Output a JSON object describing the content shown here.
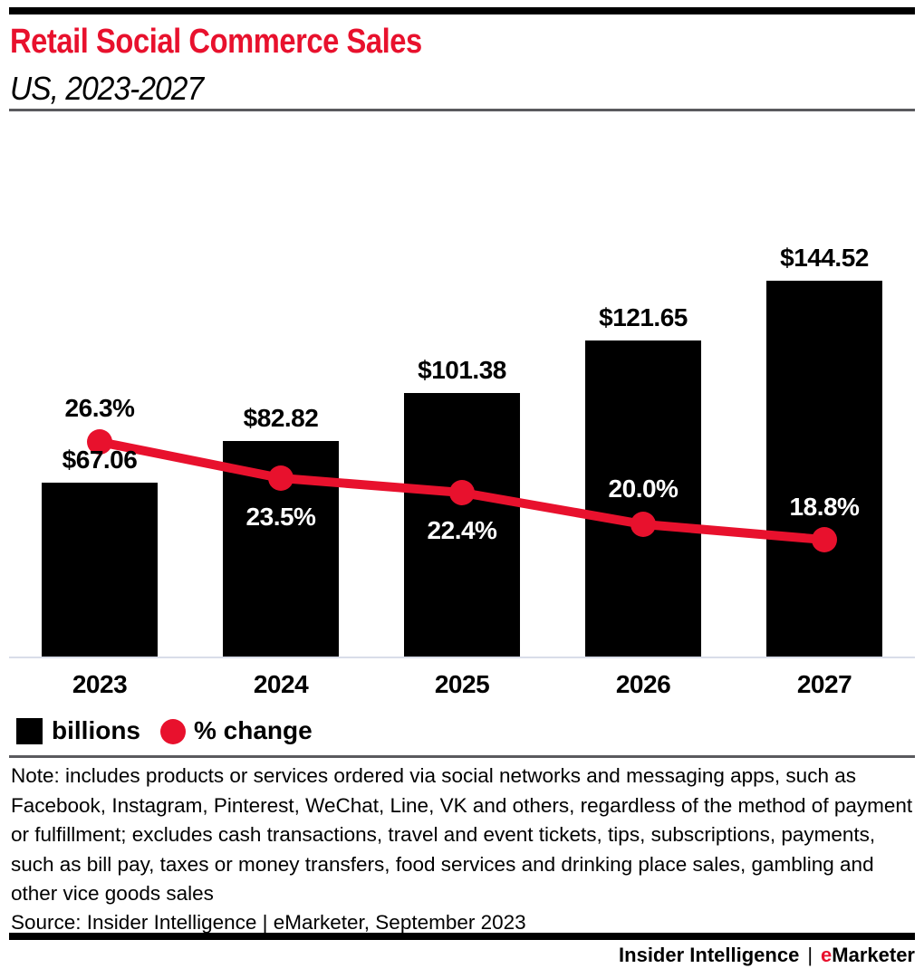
{
  "header": {
    "title": "Retail Social Commerce Sales",
    "subtitle": "US, 2023-2027"
  },
  "chart_data": {
    "type": "bar",
    "subtype": "bar-and-line combo",
    "categories": [
      "2023",
      "2024",
      "2025",
      "2026",
      "2027"
    ],
    "series": [
      {
        "name": "billions",
        "type": "bar",
        "color": "#000000",
        "values": [
          67.06,
          82.82,
          101.38,
          121.65,
          144.52
        ],
        "labels": [
          "$67.06",
          "$82.82",
          "$101.38",
          "$121.65",
          "$144.52"
        ]
      },
      {
        "name": "% change",
        "type": "line",
        "color": "#e8112d",
        "values": [
          26.3,
          23.5,
          22.4,
          20.0,
          18.8
        ],
        "labels": [
          "26.3%",
          "23.5%",
          "22.4%",
          "20.0%",
          "18.8%"
        ]
      }
    ],
    "title": "Retail Social Commerce Sales",
    "subtitle": "US, 2023-2027",
    "xlabel": "",
    "ylabel": "",
    "grid": false,
    "axes_visible": false,
    "legend_position": "bottom-left",
    "legend": [
      {
        "label": "billions",
        "swatch": "square",
        "color": "#000000"
      },
      {
        "label": "% change",
        "swatch": "circle",
        "color": "#e8112d"
      }
    ]
  },
  "note": "Note: includes products or services ordered via social networks and messaging apps, such as Facebook, Instagram, Pinterest, WeChat, Line, VK and others, regardless of the method of payment or fulfillment; excludes cash transactions, travel and event tickets, tips, subscriptions, payments, such as bill pay, taxes or money transfers, food services and drinking place sales, gambling and other vice goods sales",
  "source": "Source: Insider Intelligence | eMarketer, September 2023",
  "footer": {
    "brand": "Insider Intelligence",
    "pipe": "|",
    "emarketer_e": "e",
    "emarketer_rest": "Marketer"
  },
  "colors": {
    "red": "#e8112d",
    "black": "#000000",
    "white": "#ffffff",
    "baseline_gray": "#d9dde9",
    "rule_gray": "#5a5a5e"
  }
}
